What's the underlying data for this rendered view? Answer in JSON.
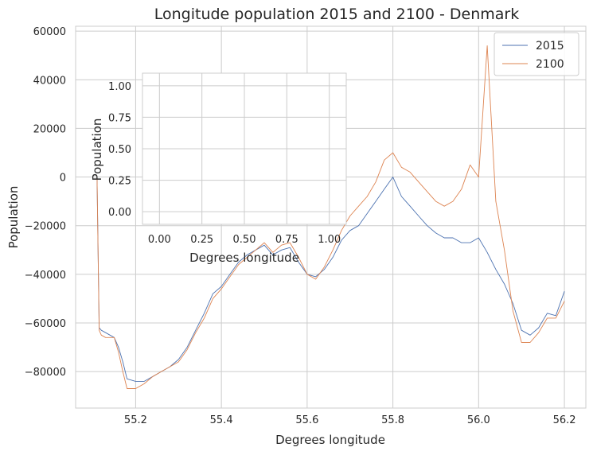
{
  "chart_data": [
    {
      "type": "line",
      "title": "Longitude population 2015 and 2100 - Denmark",
      "xlabel": "Degrees longitude",
      "ylabel": "Population",
      "xlim": [
        55.06,
        56.25
      ],
      "ylim": [
        -95000,
        62000
      ],
      "xticks": [
        55.2,
        55.4,
        55.6,
        55.8,
        56.0,
        56.2
      ],
      "yticks": [
        -80000,
        -60000,
        -40000,
        -20000,
        0,
        20000,
        40000,
        60000
      ],
      "grid": true,
      "legend": "top-right",
      "series": [
        {
          "name": "2015",
          "color": "#4c72b0",
          "x": [
            55.11,
            55.115,
            55.12,
            55.13,
            55.15,
            55.16,
            55.17,
            55.18,
            55.2,
            55.22,
            55.24,
            55.26,
            55.28,
            55.3,
            55.32,
            55.34,
            55.36,
            55.38,
            55.4,
            55.42,
            55.44,
            55.46,
            55.48,
            55.5,
            55.52,
            55.54,
            55.56,
            55.58,
            55.6,
            55.62,
            55.64,
            55.66,
            55.68,
            55.7,
            55.72,
            55.74,
            55.76,
            55.78,
            55.8,
            55.82,
            55.84,
            55.86,
            55.88,
            55.9,
            55.92,
            55.94,
            55.96,
            55.98,
            56.0,
            56.02,
            56.04,
            56.06,
            56.08,
            56.1,
            56.12,
            56.14,
            56.16,
            56.18,
            56.2
          ],
          "values": [
            0,
            -62000,
            -63000,
            -64000,
            -66000,
            -70000,
            -76000,
            -83000,
            -84000,
            -84000,
            -82000,
            -80000,
            -78000,
            -75000,
            -70000,
            -63000,
            -56000,
            -48000,
            -45000,
            -40000,
            -35000,
            -32000,
            -30000,
            -28000,
            -32000,
            -30000,
            -29000,
            -35000,
            -40000,
            -41000,
            -38000,
            -33000,
            -26000,
            -22000,
            -20000,
            -15000,
            -10000,
            -5000,
            0,
            -8000,
            -12000,
            -16000,
            -20000,
            -23000,
            -25000,
            -25000,
            -27000,
            -27000,
            -25000,
            -31000,
            -38000,
            -44000,
            -52000,
            -63000,
            -65000,
            -62000,
            -56000,
            -57000,
            -47000
          ]
        },
        {
          "name": "2100",
          "color": "#dd8452",
          "x": [
            55.11,
            55.115,
            55.12,
            55.13,
            55.15,
            55.16,
            55.17,
            55.18,
            55.2,
            55.22,
            55.24,
            55.26,
            55.28,
            55.3,
            55.32,
            55.34,
            55.36,
            55.38,
            55.4,
            55.42,
            55.44,
            55.46,
            55.48,
            55.5,
            55.52,
            55.54,
            55.56,
            55.58,
            55.6,
            55.62,
            55.64,
            55.66,
            55.68,
            55.7,
            55.72,
            55.74,
            55.76,
            55.78,
            55.8,
            55.82,
            55.84,
            55.86,
            55.88,
            55.9,
            55.92,
            55.94,
            55.96,
            55.98,
            56.0,
            56.02,
            56.04,
            56.06,
            56.08,
            56.1,
            56.12,
            56.14,
            56.16,
            56.18,
            56.2
          ],
          "values": [
            0,
            -63000,
            -65000,
            -66000,
            -66000,
            -72000,
            -80000,
            -87000,
            -87000,
            -85000,
            -82000,
            -80000,
            -78000,
            -76000,
            -71000,
            -64000,
            -58000,
            -50000,
            -46000,
            -41000,
            -36000,
            -33000,
            -30000,
            -27000,
            -31000,
            -28000,
            -27000,
            -33000,
            -40000,
            -42000,
            -37000,
            -30000,
            -22000,
            -16000,
            -12000,
            -8000,
            -2000,
            7000,
            10000,
            4000,
            2000,
            -2000,
            -6000,
            -10000,
            -12000,
            -10000,
            -5000,
            5000,
            0,
            54000,
            -10000,
            -30000,
            -55000,
            -68000,
            -68000,
            -64000,
            -58000,
            -58000,
            -51000
          ]
        }
      ]
    },
    {
      "type": "line",
      "title": "",
      "xlabel": "Degrees longitude",
      "ylabel": "Population",
      "xlim": [
        -0.1,
        1.1
      ],
      "ylim": [
        -0.1,
        1.1
      ],
      "xticks": [
        0.0,
        0.25,
        0.5,
        0.75,
        1.0
      ],
      "yticks": [
        0.0,
        0.25,
        0.5,
        0.75,
        1.0
      ],
      "grid": true,
      "series": []
    }
  ]
}
